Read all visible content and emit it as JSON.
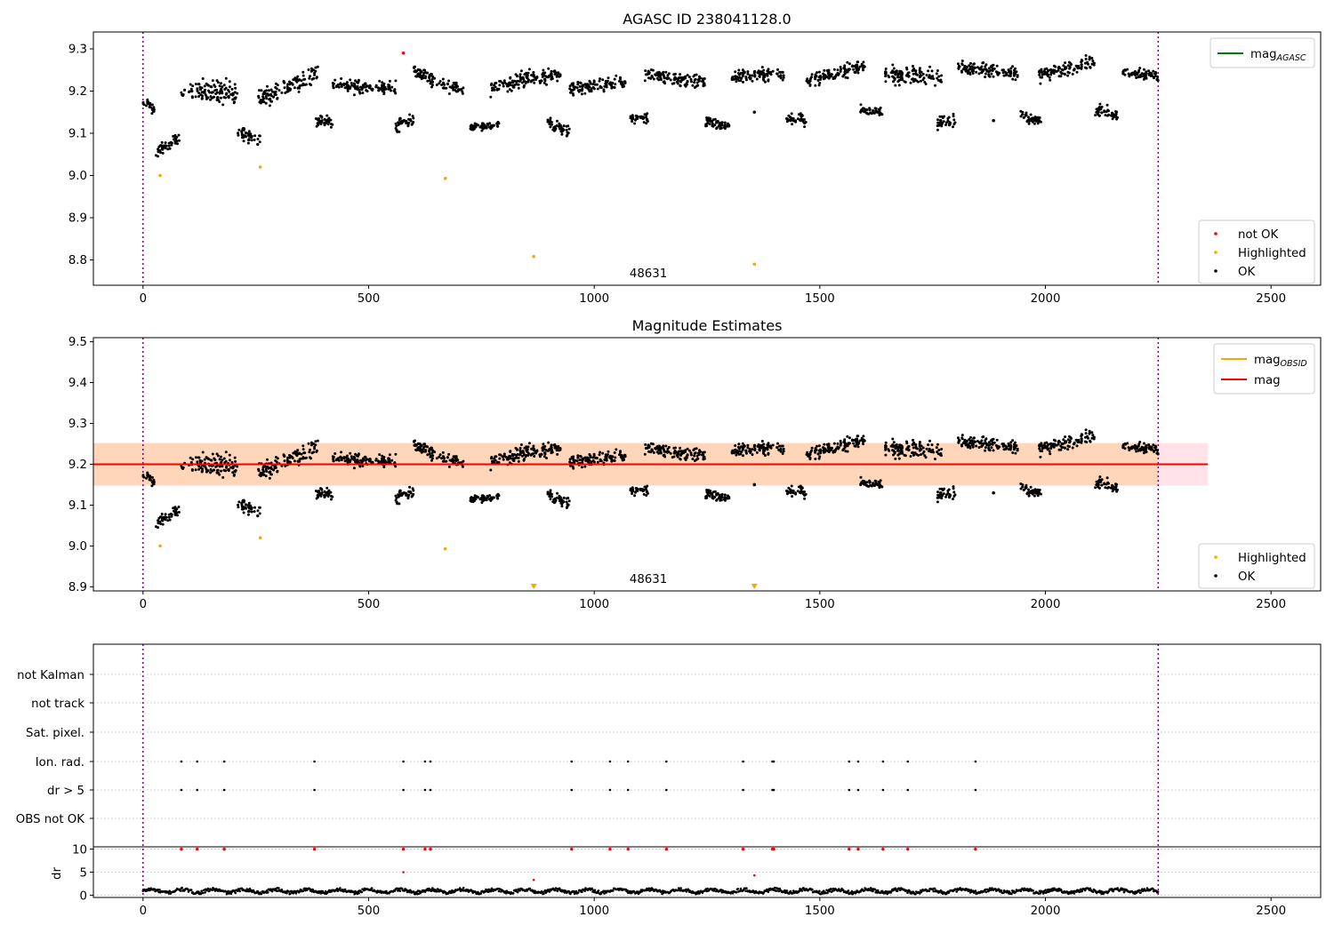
{
  "chart_data": [
    {
      "type": "scatter",
      "title": "AGASC ID 238041128.0",
      "xlim": [
        -110,
        2610
      ],
      "ylim": [
        8.74,
        9.34
      ],
      "xticks": [
        0,
        500,
        1000,
        1500,
        2000,
        2500
      ],
      "yticks": [
        8.8,
        8.9,
        9.0,
        9.1,
        9.2,
        9.3
      ],
      "x_tick_labels": [
        "0",
        "500",
        "1000",
        "1500",
        "2000",
        "2500"
      ],
      "y_tick_labels": [
        "8.8",
        "8.9",
        "9.0",
        "9.1",
        "9.2",
        "9.3"
      ],
      "obsid_annotation": {
        "x": 1120,
        "text": "48631"
      },
      "obs_boundaries": [
        0,
        2250
      ],
      "mag_agasc": null,
      "legend_lines": [
        {
          "label_main": "mag",
          "label_sub": "AGASC",
          "color": "#008000"
        }
      ],
      "legend_points": [
        {
          "label": "not OK",
          "color": "#ff0000"
        },
        {
          "label": "Highlighted",
          "color": "#ffa500"
        },
        {
          "label": "OK",
          "color": "#000000"
        }
      ],
      "series": [
        {
          "name": "OK",
          "color": "#000000",
          "segments": [
            [
              0,
              25,
              9.175,
              9.155,
              0.02
            ],
            [
              28,
              80,
              9.05,
              9.095,
              0.02
            ],
            [
              85,
              210,
              9.2,
              9.195,
              0.035
            ],
            [
              210,
              260,
              9.1,
              9.085,
              0.02
            ],
            [
              255,
              390,
              9.18,
              9.245,
              0.03
            ],
            [
              380,
              420,
              9.13,
              9.125,
              0.02
            ],
            [
              420,
              560,
              9.215,
              9.205,
              0.02
            ],
            [
              560,
              600,
              9.115,
              9.135,
              0.02
            ],
            [
              600,
              710,
              9.245,
              9.2,
              0.02
            ],
            [
              725,
              790,
              9.115,
              9.12,
              0.012
            ],
            [
              770,
              860,
              9.205,
              9.235,
              0.025
            ],
            [
              860,
              925,
              9.23,
              9.24,
              0.02
            ],
            [
              895,
              945,
              9.125,
              9.105,
              0.02
            ],
            [
              945,
              1070,
              9.205,
              9.22,
              0.02
            ],
            [
              1080,
              1120,
              9.135,
              9.135,
              0.015
            ],
            [
              1110,
              1245,
              9.24,
              9.22,
              0.02
            ],
            [
              1245,
              1300,
              9.125,
              9.12,
              0.02
            ],
            [
              1305,
              1420,
              9.235,
              9.24,
              0.02
            ],
            [
              1425,
              1470,
              9.13,
              9.135,
              0.02
            ],
            [
              1470,
              1600,
              9.225,
              9.26,
              0.02
            ],
            [
              1590,
              1640,
              9.155,
              9.15,
              0.015
            ],
            [
              1645,
              1770,
              9.24,
              9.23,
              0.025
            ],
            [
              1760,
              1800,
              9.125,
              9.13,
              0.02
            ],
            [
              1805,
              1940,
              9.26,
              9.24,
              0.02
            ],
            [
              1945,
              1990,
              9.14,
              9.13,
              0.015
            ],
            [
              1985,
              2110,
              9.235,
              9.27,
              0.02
            ],
            [
              2110,
              2160,
              9.155,
              9.14,
              0.02
            ],
            [
              2170,
              2250,
              9.245,
              9.235,
              0.015
            ]
          ],
          "x": [
            570,
            1355,
            1885
          ],
          "y": [
            9.135,
            9.15,
            9.13
          ]
        },
        {
          "name": "Highlighted",
          "color": "#ffa500",
          "x": [
            38,
            260,
            670,
            866,
            1355
          ],
          "y": [
            9.0,
            9.02,
            8.993,
            8.808,
            8.79
          ]
        },
        {
          "name": "not OK",
          "color": "#ff0000",
          "x": [
            577
          ],
          "y": [
            9.29
          ]
        }
      ]
    },
    {
      "type": "scatter",
      "title": "Magnitude Estimates",
      "xlim": [
        -110,
        2610
      ],
      "ylim": [
        8.89,
        9.51
      ],
      "xticks": [
        0,
        500,
        1000,
        1500,
        2000,
        2500
      ],
      "yticks": [
        8.9,
        9.0,
        9.1,
        9.2,
        9.3,
        9.4,
        9.5
      ],
      "x_tick_labels": [
        "0",
        "500",
        "1000",
        "1500",
        "2000",
        "2500"
      ],
      "y_tick_labels": [
        "8.9",
        "9.0",
        "9.1",
        "9.2",
        "9.3",
        "9.4",
        "9.5"
      ],
      "obsid_annotation": {
        "x": 1120,
        "text": "48631"
      },
      "obs_boundaries": [
        0,
        2250
      ],
      "mag": 9.2,
      "mag_band": [
        9.148,
        9.252
      ],
      "mag_obsid": 9.2,
      "mag_obsid_band": [
        9.148,
        9.252
      ],
      "legend_lines": [
        {
          "label_main": "mag",
          "label_sub": "OBSID",
          "color": "#ffa500"
        },
        {
          "label_main": "mag",
          "label_sub": "",
          "color": "#ff0000"
        }
      ],
      "legend_points": [
        {
          "label": "Highlighted",
          "color": "#ffa500"
        },
        {
          "label": "OK",
          "color": "#000000"
        }
      ],
      "series": [
        {
          "name": "OK",
          "color": "#000000",
          "reuse_segments_from": 0,
          "x": [
            570,
            1355,
            1885
          ],
          "y": [
            9.135,
            9.15,
            9.13
          ]
        },
        {
          "name": "Highlighted",
          "color": "#ffa500",
          "x": [
            38,
            260,
            670
          ],
          "y": [
            9.0,
            9.02,
            8.993
          ],
          "below_axis_markers_x": [
            866,
            1355
          ]
        }
      ]
    },
    {
      "type": "scatter",
      "title": "",
      "xlim": [
        -110,
        2610
      ],
      "flag_rows": [
        "not Kalman",
        "not track",
        "Sat. pixel.",
        "Ion. rad.",
        "dr > 5",
        "OBS not OK"
      ],
      "flag_events_x": [
        85,
        120,
        180,
        380,
        577,
        625,
        637,
        950,
        1035,
        1075,
        1160,
        1330,
        1395,
        1398,
        1565,
        1585,
        1640,
        1695,
        1845
      ],
      "flag_color": "#000000",
      "dr_ylim": [
        -0.5,
        10.5
      ],
      "dr_yticks": [
        0,
        5,
        10
      ],
      "dr_y_tick_labels": [
        "0",
        "5",
        "10"
      ],
      "dr_ylabel": "dr",
      "dr_baseline_mean": 0.9,
      "dr_baseline_spread": 0.7,
      "dr_clipped_value": 10,
      "dr_clipped_color": "#ff0000",
      "dr_extra_points": [
        {
          "x": 577,
          "y": 5.0
        },
        {
          "x": 866,
          "y": 3.3
        },
        {
          "x": 1355,
          "y": 4.3
        }
      ],
      "x_tick_labels": [
        "0",
        "500",
        "1000",
        "1500",
        "2000",
        "2500"
      ],
      "xticks": [
        0,
        500,
        1000,
        1500,
        2000,
        2500
      ],
      "obs_boundaries": [
        0,
        2250
      ]
    }
  ]
}
